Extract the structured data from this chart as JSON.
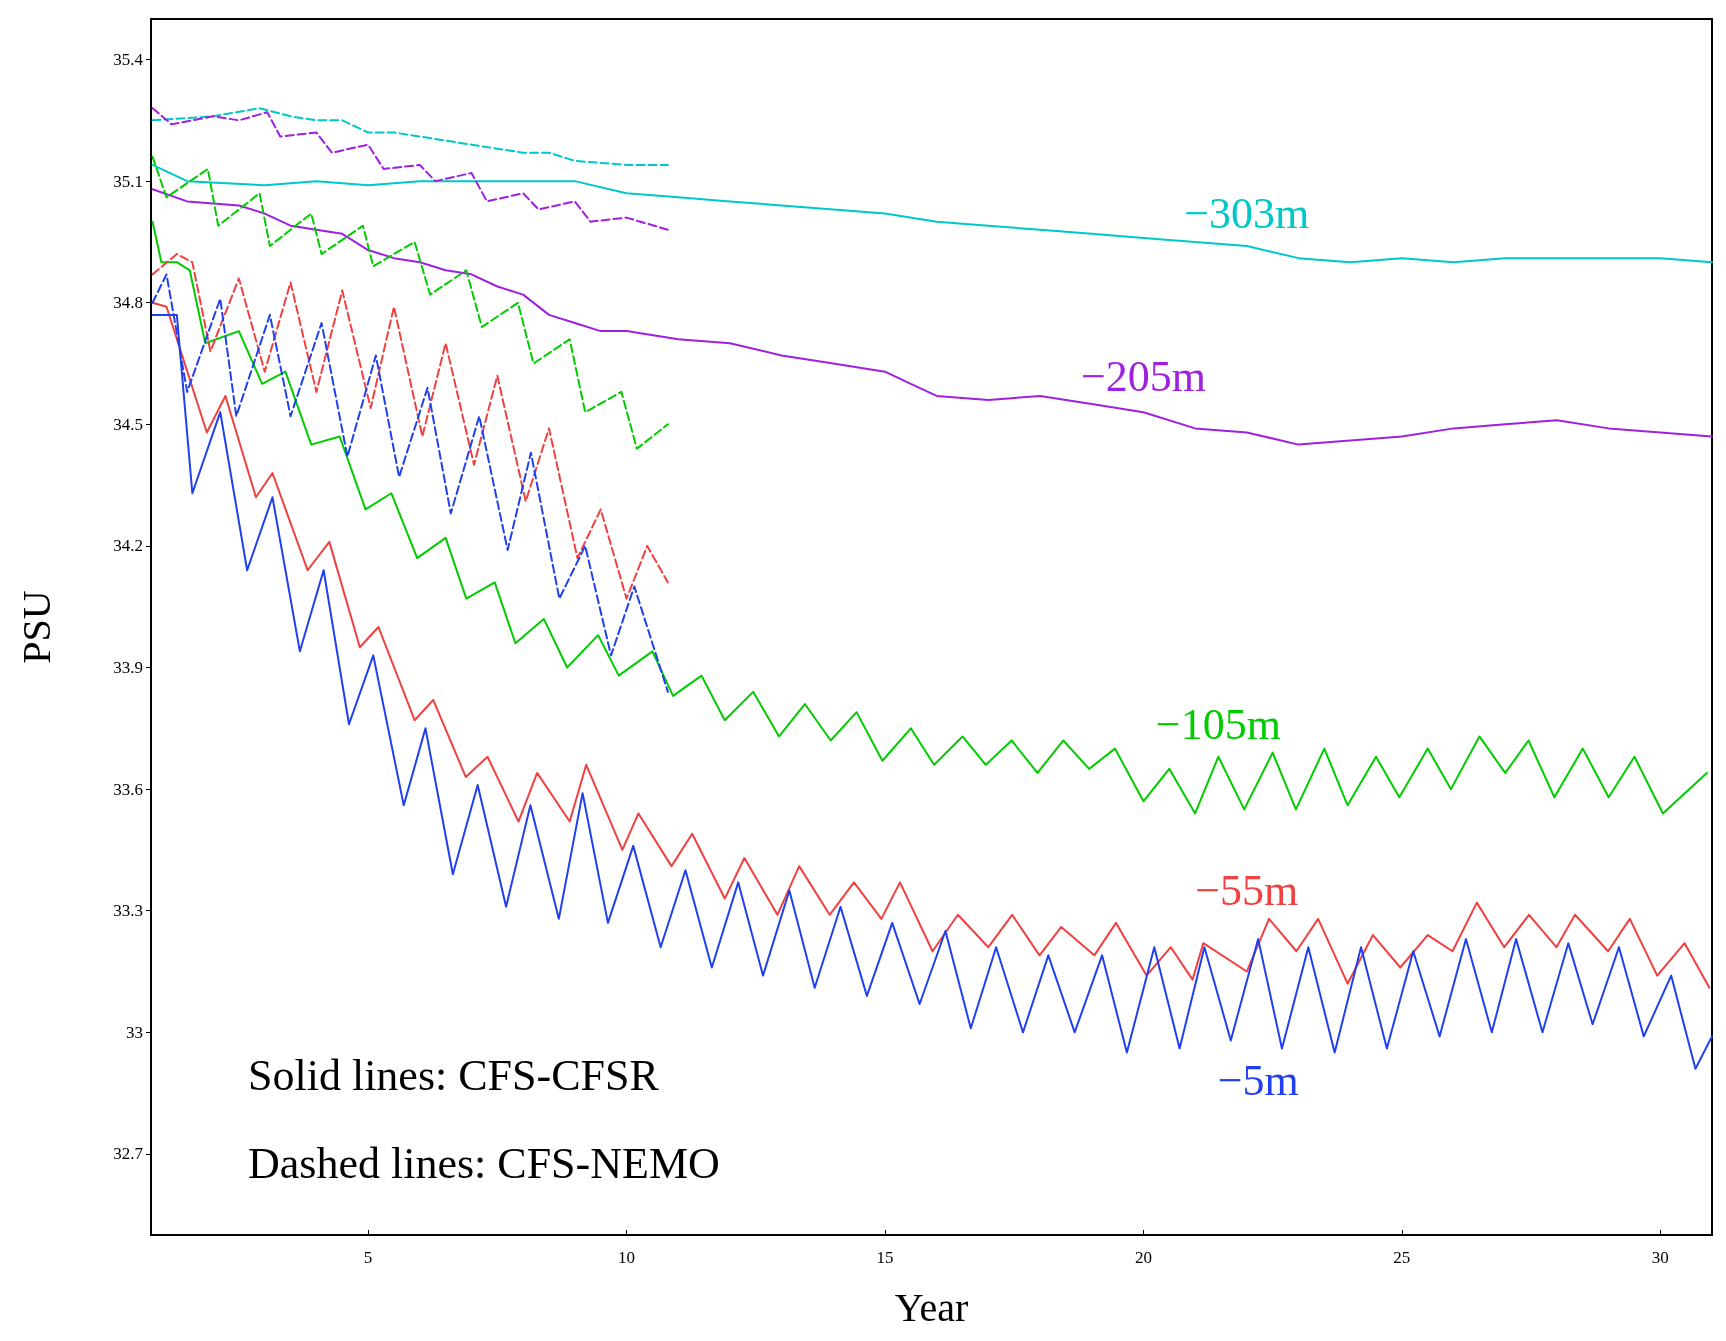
{
  "chart_data": {
    "type": "line",
    "xlabel": "Year",
    "ylabel": "PSU",
    "xlim": [
      0.8,
      31
    ],
    "ylim": [
      32.5,
      35.5
    ],
    "xticks": [
      5,
      10,
      15,
      20,
      25,
      30
    ],
    "yticks": [
      32.7,
      33,
      33.3,
      33.6,
      33.9,
      34.2,
      34.5,
      34.8,
      35.1,
      35.4
    ],
    "grid": false,
    "legend": false,
    "marker": "none",
    "annotations": [
      "Solid lines: CFS-CFSR",
      "Dashed lines: CFS-NEMO"
    ],
    "series": [
      {
        "name": "−303m",
        "color": "#00c8c8",
        "line_style": "solid",
        "x": [
          0.83,
          1.5,
          3,
          4,
          5,
          6,
          7,
          8,
          9,
          10,
          11,
          12,
          13,
          14,
          15,
          16,
          17,
          18,
          19,
          20,
          21,
          22,
          23,
          24,
          25,
          26,
          27,
          28,
          29,
          30,
          31
        ],
        "values": [
          35.14,
          35.1,
          35.09,
          35.1,
          35.09,
          35.1,
          35.1,
          35.1,
          35.1,
          35.07,
          35.06,
          35.05,
          35.04,
          35.03,
          35.02,
          35,
          34.99,
          34.98,
          34.97,
          34.96,
          34.95,
          34.94,
          34.91,
          34.9,
          34.91,
          34.9,
          34.91,
          34.91,
          34.91,
          34.91,
          34.9
        ]
      },
      {
        "name": "−205m",
        "color": "#a020e0",
        "line_style": "solid",
        "x": [
          0.83,
          1.5,
          2.5,
          3,
          3.5,
          4,
          4.5,
          5,
          5.5,
          6,
          6.5,
          7,
          7.5,
          8,
          8.5,
          9,
          9.5,
          10,
          11,
          12,
          13,
          14,
          15,
          15.5,
          16,
          17,
          18,
          19,
          20,
          21,
          22,
          23,
          24,
          25,
          26,
          27,
          28,
          29,
          30,
          31
        ],
        "values": [
          35.08,
          35.05,
          35.04,
          35.02,
          34.99,
          34.98,
          34.97,
          34.93,
          34.91,
          34.9,
          34.88,
          34.87,
          34.84,
          34.82,
          34.77,
          34.75,
          34.73,
          34.73,
          34.71,
          34.7,
          34.67,
          34.65,
          34.63,
          34.6,
          34.57,
          34.56,
          34.57,
          34.55,
          34.53,
          34.49,
          34.48,
          34.45,
          34.46,
          34.47,
          34.49,
          34.5,
          34.51,
          34.49,
          34.48,
          34.47
        ]
      },
      {
        "name": "−105m",
        "color": "#00cc00",
        "line_style": "solid",
        "x": [
          0.83,
          1,
          1.3,
          1.55,
          1.85,
          2.5,
          2.95,
          3.4,
          3.9,
          4.45,
          4.95,
          5.45,
          5.95,
          6.5,
          6.9,
          7.45,
          7.85,
          8.4,
          8.85,
          9.45,
          9.85,
          10.5,
          10.9,
          11.45,
          11.9,
          12.45,
          12.95,
          13.45,
          13.95,
          14.45,
          14.95,
          15.5,
          15.95,
          16.5,
          16.95,
          17.45,
          17.95,
          18.45,
          18.95,
          19.45,
          20,
          20.5,
          21,
          21.45,
          21.95,
          22.5,
          22.95,
          23.5,
          23.95,
          24.5,
          24.95,
          25.5,
          25.95,
          26.5,
          27,
          27.45,
          27.95,
          28.5,
          29,
          29.5,
          30.05,
          30.9
        ],
        "values": [
          35,
          34.9,
          34.9,
          34.88,
          34.7,
          34.73,
          34.6,
          34.63,
          34.45,
          34.47,
          34.29,
          34.33,
          34.17,
          34.22,
          34.07,
          34.11,
          33.96,
          34.02,
          33.9,
          33.98,
          33.88,
          33.94,
          33.83,
          33.88,
          33.77,
          33.84,
          33.73,
          33.81,
          33.72,
          33.79,
          33.67,
          33.75,
          33.66,
          33.73,
          33.66,
          33.72,
          33.64,
          33.72,
          33.65,
          33.7,
          33.57,
          33.65,
          33.54,
          33.68,
          33.55,
          33.69,
          33.55,
          33.7,
          33.56,
          33.68,
          33.58,
          33.7,
          33.6,
          33.73,
          33.64,
          33.72,
          33.58,
          33.7,
          33.58,
          33.68,
          33.54,
          33.64
        ]
      },
      {
        "name": "−55m",
        "color": "#f04040",
        "line_style": "solid",
        "x": [
          0.83,
          1.1,
          1.88,
          2.24,
          2.83,
          3.15,
          3.83,
          4.25,
          4.84,
          5.2,
          5.9,
          6.26,
          6.89,
          7.31,
          7.91,
          8.27,
          8.9,
          9.22,
          9.92,
          10.23,
          10.87,
          11.27,
          11.9,
          12.28,
          12.92,
          13.34,
          13.93,
          14.4,
          14.93,
          15.29,
          15.92,
          16.41,
          17,
          17.46,
          17.99,
          18.41,
          19.05,
          19.47,
          20.06,
          20.53,
          20.95,
          21.16,
          22,
          22.43,
          22.96,
          23.38,
          23.95,
          24.44,
          24.97,
          25.5,
          25.98,
          26.45,
          26.98,
          27.46,
          27.99,
          28.35,
          28.99,
          29.41,
          29.94,
          30.47,
          30.95
        ],
        "values": [
          34.8,
          34.79,
          34.48,
          34.57,
          34.32,
          34.38,
          34.14,
          34.21,
          33.95,
          34,
          33.77,
          33.82,
          33.63,
          33.68,
          33.52,
          33.64,
          33.52,
          33.66,
          33.45,
          33.54,
          33.41,
          33.49,
          33.33,
          33.43,
          33.29,
          33.41,
          33.29,
          33.37,
          33.28,
          33.37,
          33.2,
          33.29,
          33.21,
          33.29,
          33.19,
          33.26,
          33.19,
          33.27,
          33.14,
          33.21,
          33.13,
          33.22,
          33.15,
          33.28,
          33.2,
          33.28,
          33.12,
          33.24,
          33.16,
          33.24,
          33.2,
          33.32,
          33.21,
          33.29,
          33.21,
          33.29,
          33.2,
          33.28,
          33.14,
          33.22,
          33.11
        ]
      },
      {
        "name": "−5m",
        "color": "#2040f0",
        "line_style": "solid",
        "x": [
          0.83,
          1.3,
          1.6,
          2.14,
          2.66,
          3.15,
          3.68,
          4.14,
          4.63,
          5.1,
          5.69,
          6.11,
          6.64,
          7.12,
          7.67,
          8.14,
          8.69,
          9.15,
          9.64,
          10.13,
          10.66,
          11.14,
          11.65,
          12.16,
          12.64,
          13.15,
          13.64,
          14.14,
          14.65,
          15.14,
          15.67,
          16.17,
          16.66,
          17.15,
          17.67,
          18.16,
          18.67,
          19.2,
          19.68,
          20.21,
          20.7,
          21.18,
          21.69,
          22.22,
          22.68,
          23.19,
          23.7,
          24.21,
          24.71,
          25.22,
          25.73,
          26.24,
          26.74,
          27.21,
          27.72,
          28.22,
          28.69,
          29.2,
          29.68,
          30.21,
          30.68,
          31
        ],
        "values": [
          34.77,
          34.77,
          34.33,
          34.53,
          34.14,
          34.32,
          33.94,
          34.14,
          33.76,
          33.93,
          33.56,
          33.75,
          33.39,
          33.61,
          33.31,
          33.56,
          33.28,
          33.59,
          33.27,
          33.46,
          33.21,
          33.4,
          33.16,
          33.37,
          33.14,
          33.35,
          33.11,
          33.31,
          33.09,
          33.27,
          33.07,
          33.25,
          33.01,
          33.21,
          33,
          33.19,
          33,
          33.19,
          32.95,
          33.21,
          32.96,
          33.21,
          32.98,
          33.23,
          32.96,
          33.21,
          32.95,
          33.21,
          32.96,
          33.2,
          32.99,
          33.23,
          33,
          33.23,
          33,
          33.22,
          33.02,
          33.21,
          32.99,
          33.14,
          32.91,
          32.99
        ]
      },
      {
        "color": "#00c8c8",
        "line_style": "dashed",
        "x": [
          0.83,
          2,
          2.9,
          3.5,
          4,
          4.5,
          5,
          5.5,
          6,
          7,
          7.5,
          8,
          8.5,
          9,
          10,
          10.8
        ],
        "values": [
          35.25,
          35.26,
          35.28,
          35.26,
          35.25,
          35.25,
          35.22,
          35.22,
          35.21,
          35.19,
          35.18,
          35.17,
          35.17,
          35.15,
          35.14,
          35.14
        ]
      },
      {
        "color": "#a020e0",
        "line_style": "dashed",
        "x": [
          0.83,
          1.2,
          2,
          2.5,
          3.05,
          3.3,
          4,
          4.3,
          5,
          5.3,
          6,
          6.3,
          7,
          7.3,
          8,
          8.3,
          9,
          9.3,
          10,
          10.8
        ],
        "values": [
          35.28,
          35.24,
          35.26,
          35.25,
          35.27,
          35.21,
          35.22,
          35.17,
          35.19,
          35.13,
          35.14,
          35.1,
          35.12,
          35.05,
          35.07,
          35.03,
          35.05,
          35,
          35.01,
          34.98
        ]
      },
      {
        "color": "#00cc00",
        "line_style": "dashed",
        "x": [
          0.83,
          1.1,
          1.9,
          2.1,
          2.9,
          3.1,
          3.9,
          4.1,
          4.9,
          5.1,
          5.9,
          6.2,
          6.9,
          7.2,
          7.9,
          8.2,
          8.9,
          9.2,
          9.9,
          10.2,
          10.8
        ],
        "values": [
          35.16,
          35.06,
          35.13,
          34.99,
          35.07,
          34.94,
          35.02,
          34.92,
          34.99,
          34.89,
          34.95,
          34.82,
          34.88,
          34.74,
          34.8,
          34.65,
          34.71,
          34.53,
          34.58,
          34.44,
          34.5
        ]
      },
      {
        "color": "#f04040",
        "line_style": "dashed",
        "x": [
          0.83,
          1.3,
          1.6,
          1.95,
          2.5,
          3,
          3.5,
          4,
          4.5,
          5.05,
          5.5,
          6.05,
          6.5,
          7.05,
          7.5,
          8.05,
          8.5,
          9.05,
          9.5,
          10,
          10.4,
          10.8
        ],
        "values": [
          34.87,
          34.92,
          34.9,
          34.68,
          34.86,
          34.63,
          34.85,
          34.58,
          34.83,
          34.54,
          34.79,
          34.47,
          34.7,
          34.4,
          34.62,
          34.31,
          34.49,
          34.17,
          34.29,
          34.07,
          34.2,
          34.11
        ]
      },
      {
        "color": "#2040f0",
        "line_style": "dashed",
        "x": [
          0.83,
          1.1,
          1.5,
          2.14,
          2.45,
          3.1,
          3.5,
          4.1,
          4.6,
          5.15,
          5.6,
          6.15,
          6.6,
          7.15,
          7.7,
          8.15,
          8.7,
          9.2,
          9.7,
          10.15,
          10.8
        ],
        "values": [
          34.8,
          34.87,
          34.58,
          34.81,
          34.52,
          34.77,
          34.52,
          34.75,
          34.42,
          34.67,
          34.37,
          34.59,
          34.28,
          34.52,
          34.19,
          34.43,
          34.07,
          34.2,
          33.93,
          34.1,
          33.84
        ]
      }
    ]
  }
}
